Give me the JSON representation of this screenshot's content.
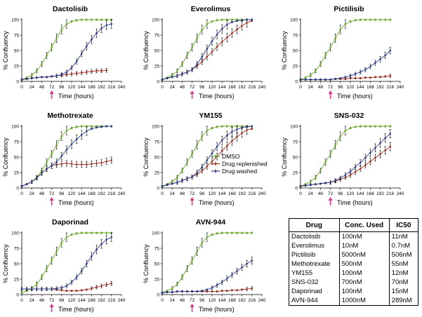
{
  "colors": {
    "dmso": "#6ab023",
    "replenished": "#a02d1e",
    "washed": "#2b3c8c",
    "arrow": "#d63c8c"
  },
  "legend": [
    "DMSO",
    "Drug replenished",
    "Drug washed"
  ],
  "chart_data": [
    {
      "type": "line",
      "title": "Dactolisib",
      "xlabel": "Time (hours)",
      "ylabel": "% Confluency",
      "xlim": [
        0,
        240
      ],
      "ylim": [
        0,
        100
      ],
      "xticks": [
        0,
        24,
        48,
        72,
        96,
        120,
        144,
        168,
        192,
        216,
        240
      ],
      "yticks": [
        0,
        25,
        50,
        75,
        100
      ],
      "x": [
        0,
        12,
        24,
        36,
        48,
        60,
        72,
        84,
        96,
        108,
        120,
        132,
        144,
        156,
        168,
        180,
        192,
        204,
        216
      ],
      "series": [
        {
          "name": "DMSO",
          "values": [
            3,
            6,
            10,
            17,
            28,
            42,
            55,
            70,
            84,
            93,
            97,
            99,
            100,
            100,
            100,
            100,
            100,
            100,
            100
          ]
        },
        {
          "name": "Drug replenished",
          "values": [
            3,
            4,
            5,
            6,
            7,
            7,
            8,
            9,
            10,
            11,
            12,
            13,
            14,
            15,
            16,
            17,
            17,
            18,
            null
          ]
        },
        {
          "name": "Drug washed",
          "values": [
            3,
            4,
            5,
            6,
            7,
            7,
            8,
            9,
            11,
            15,
            22,
            32,
            45,
            57,
            68,
            78,
            86,
            91,
            93
          ]
        }
      ]
    },
    {
      "type": "line",
      "title": "Everolimus",
      "xlabel": "Time (hours)",
      "ylabel": "% Confluency",
      "xlim": [
        0,
        240
      ],
      "ylim": [
        0,
        100
      ],
      "xticks": [
        0,
        24,
        48,
        72,
        96,
        120,
        144,
        168,
        192,
        216,
        240
      ],
      "yticks": [
        0,
        25,
        50,
        75,
        100
      ],
      "x": [
        0,
        12,
        24,
        36,
        48,
        60,
        72,
        84,
        96,
        108,
        120,
        132,
        144,
        156,
        168,
        180,
        192,
        204,
        216
      ],
      "series": [
        {
          "name": "DMSO",
          "values": [
            3,
            6,
            10,
            17,
            28,
            42,
            55,
            70,
            84,
            93,
            97,
            99,
            100,
            100,
            100,
            100,
            100,
            100,
            100
          ]
        },
        {
          "name": "Drug replenished",
          "values": [
            3,
            5,
            7,
            9,
            12,
            15,
            19,
            25,
            32,
            40,
            48,
            56,
            64,
            71,
            78,
            84,
            90,
            95,
            98
          ]
        },
        {
          "name": "Drug washed",
          "values": [
            3,
            5,
            7,
            9,
            12,
            15,
            19,
            28,
            40,
            53,
            65,
            76,
            85,
            92,
            96,
            98,
            99,
            100,
            100
          ]
        }
      ]
    },
    {
      "type": "line",
      "title": "Pictilisib",
      "xlabel": "Time (hours)",
      "ylabel": "% Confluency",
      "xlim": [
        0,
        240
      ],
      "ylim": [
        0,
        100
      ],
      "xticks": [
        0,
        24,
        48,
        72,
        96,
        120,
        144,
        168,
        192,
        216,
        240
      ],
      "yticks": [
        0,
        25,
        50,
        75,
        100
      ],
      "x": [
        0,
        12,
        24,
        36,
        48,
        60,
        72,
        84,
        96,
        108,
        120,
        132,
        144,
        156,
        168,
        180,
        192,
        204,
        216
      ],
      "series": [
        {
          "name": "DMSO",
          "values": [
            3,
            6,
            10,
            17,
            28,
            42,
            55,
            70,
            84,
            93,
            97,
            99,
            100,
            100,
            100,
            100,
            100,
            100,
            100
          ]
        },
        {
          "name": "Drug replenished",
          "values": [
            3,
            3,
            3,
            3,
            3,
            3,
            3,
            4,
            4,
            4,
            5,
            5,
            5,
            6,
            6,
            7,
            7,
            8,
            9
          ]
        },
        {
          "name": "Drug washed",
          "values": [
            3,
            3,
            3,
            3,
            3,
            3,
            3,
            4,
            5,
            7,
            9,
            12,
            15,
            19,
            24,
            30,
            36,
            42,
            50
          ]
        }
      ]
    },
    {
      "type": "line",
      "title": "Methotrexate",
      "xlabel": "Time (hours)",
      "ylabel": "% Confluency",
      "xlim": [
        0,
        240
      ],
      "ylim": [
        0,
        100
      ],
      "xticks": [
        0,
        24,
        48,
        72,
        96,
        120,
        144,
        168,
        192,
        216,
        240
      ],
      "yticks": [
        0,
        25,
        50,
        75,
        100
      ],
      "x": [
        0,
        12,
        24,
        36,
        48,
        60,
        72,
        84,
        96,
        108,
        120,
        132,
        144,
        156,
        168,
        180,
        192,
        204,
        216
      ],
      "series": [
        {
          "name": "DMSO",
          "values": [
            3,
            6,
            10,
            17,
            28,
            42,
            55,
            70,
            84,
            93,
            97,
            99,
            100,
            100,
            100,
            100,
            100,
            100,
            100
          ]
        },
        {
          "name": "Drug replenished",
          "values": [
            3,
            6,
            10,
            16,
            24,
            31,
            36,
            38,
            39,
            40,
            39,
            38,
            38,
            38,
            39,
            40,
            41,
            43,
            45
          ]
        },
        {
          "name": "Drug washed",
          "values": [
            3,
            6,
            10,
            16,
            24,
            31,
            36,
            42,
            52,
            62,
            71,
            79,
            86,
            92,
            96,
            98,
            99,
            100,
            100
          ]
        }
      ]
    },
    {
      "type": "line",
      "title": "YM155",
      "xlabel": "Time (hours)",
      "ylabel": "% Confluency",
      "xlim": [
        0,
        240
      ],
      "ylim": [
        0,
        100
      ],
      "xticks": [
        0,
        24,
        48,
        72,
        96,
        120,
        144,
        168,
        192,
        216,
        240
      ],
      "yticks": [
        0,
        25,
        50,
        75,
        100
      ],
      "x": [
        0,
        12,
        24,
        36,
        48,
        60,
        72,
        84,
        96,
        108,
        120,
        132,
        144,
        156,
        168,
        180,
        192,
        204,
        216
      ],
      "series": [
        {
          "name": "DMSO",
          "values": [
            3,
            6,
            10,
            17,
            28,
            42,
            55,
            70,
            84,
            93,
            97,
            99,
            100,
            100,
            100,
            100,
            100,
            100,
            100
          ]
        },
        {
          "name": "Drug replenished",
          "values": [
            3,
            5,
            7,
            9,
            12,
            15,
            18,
            22,
            28,
            35,
            43,
            51,
            60,
            68,
            76,
            83,
            89,
            94,
            96
          ]
        },
        {
          "name": "Drug washed",
          "values": [
            3,
            5,
            7,
            9,
            12,
            15,
            18,
            25,
            34,
            45,
            56,
            67,
            77,
            85,
            91,
            95,
            98,
            99,
            100
          ]
        }
      ]
    },
    {
      "type": "line",
      "title": "SNS-032",
      "xlabel": "Time (hours)",
      "ylabel": "% Confluency",
      "xlim": [
        0,
        240
      ],
      "ylim": [
        0,
        100
      ],
      "xticks": [
        0,
        24,
        48,
        72,
        96,
        120,
        144,
        168,
        192,
        216,
        240
      ],
      "yticks": [
        0,
        25,
        50,
        75,
        100
      ],
      "x": [
        0,
        12,
        24,
        36,
        48,
        60,
        72,
        84,
        96,
        108,
        120,
        132,
        144,
        156,
        168,
        180,
        192,
        204,
        216
      ],
      "series": [
        {
          "name": "DMSO",
          "values": [
            3,
            6,
            10,
            17,
            28,
            42,
            55,
            70,
            84,
            93,
            97,
            99,
            100,
            100,
            100,
            100,
            100,
            100,
            100
          ]
        },
        {
          "name": "Drug replenished",
          "values": [
            3,
            4,
            5,
            6,
            7,
            8,
            9,
            11,
            14,
            17,
            21,
            26,
            31,
            37,
            43,
            49,
            55,
            61,
            67
          ]
        },
        {
          "name": "Drug washed",
          "values": [
            3,
            4,
            5,
            6,
            7,
            8,
            9,
            12,
            16,
            21,
            27,
            34,
            41,
            49,
            57,
            65,
            73,
            81,
            88
          ]
        }
      ]
    },
    {
      "type": "line",
      "title": "Daporinad",
      "xlabel": "Time (hours)",
      "ylabel": "% Confluency",
      "xlim": [
        0,
        240
      ],
      "ylim": [
        0,
        100
      ],
      "xticks": [
        0,
        24,
        48,
        72,
        96,
        120,
        144,
        168,
        192,
        216,
        240
      ],
      "yticks": [
        0,
        25,
        50,
        75,
        100
      ],
      "x": [
        0,
        12,
        24,
        36,
        48,
        60,
        72,
        84,
        96,
        108,
        120,
        132,
        144,
        156,
        168,
        180,
        192,
        204,
        216
      ],
      "series": [
        {
          "name": "DMSO",
          "values": [
            3,
            6,
            10,
            17,
            28,
            42,
            55,
            70,
            84,
            93,
            97,
            99,
            100,
            100,
            100,
            100,
            100,
            100,
            100
          ]
        },
        {
          "name": "Drug replenished",
          "values": [
            9,
            9,
            9,
            9,
            9,
            9,
            9,
            8,
            7,
            6,
            6,
            6,
            7,
            8,
            10,
            12,
            14,
            16,
            18
          ]
        },
        {
          "name": "Drug washed",
          "values": [
            9,
            9,
            9,
            9,
            9,
            9,
            9,
            10,
            11,
            14,
            20,
            28,
            38,
            50,
            62,
            73,
            82,
            89,
            93
          ]
        }
      ]
    },
    {
      "type": "line",
      "title": "AVN-944",
      "xlabel": "Time (hours)",
      "ylabel": "% Confluency",
      "xlim": [
        0,
        240
      ],
      "ylim": [
        0,
        100
      ],
      "xticks": [
        0,
        24,
        48,
        72,
        96,
        120,
        144,
        168,
        192,
        216,
        240
      ],
      "yticks": [
        0,
        25,
        50,
        75,
        100
      ],
      "x": [
        0,
        12,
        24,
        36,
        48,
        60,
        72,
        84,
        96,
        108,
        120,
        132,
        144,
        156,
        168,
        180,
        192,
        204,
        216
      ],
      "series": [
        {
          "name": "DMSO",
          "values": [
            3,
            6,
            10,
            17,
            28,
            42,
            55,
            70,
            84,
            93,
            97,
            99,
            100,
            100,
            100,
            100,
            100,
            100,
            100
          ]
        },
        {
          "name": "Drug replenished",
          "values": [
            3,
            4,
            4,
            5,
            5,
            5,
            5,
            5,
            5,
            5,
            5,
            5,
            6,
            6,
            7,
            7,
            8,
            9,
            10
          ]
        },
        {
          "name": "Drug washed",
          "values": [
            3,
            4,
            4,
            5,
            5,
            5,
            5,
            5,
            6,
            8,
            11,
            15,
            20,
            26,
            32,
            38,
            44,
            50,
            55
          ]
        }
      ]
    }
  ],
  "table": {
    "headers": [
      "Drug",
      "Conc. Used",
      "IC50"
    ],
    "rows": [
      [
        "Dactolisib",
        "100nM",
        "11nM"
      ],
      [
        "Everolimus",
        "10nM",
        "0.7nM"
      ],
      [
        "Pictilisib",
        "5000nM",
        "506nM"
      ],
      [
        "Methotrexate",
        "500nM",
        "55nM"
      ],
      [
        "YM155",
        "100nM",
        "12nM"
      ],
      [
        "SNS-032",
        "700nM",
        "70nM"
      ],
      [
        "Daporinad",
        "100nM",
        "15nM"
      ],
      [
        "AVN-944",
        "1000nM",
        "289nM"
      ]
    ]
  }
}
